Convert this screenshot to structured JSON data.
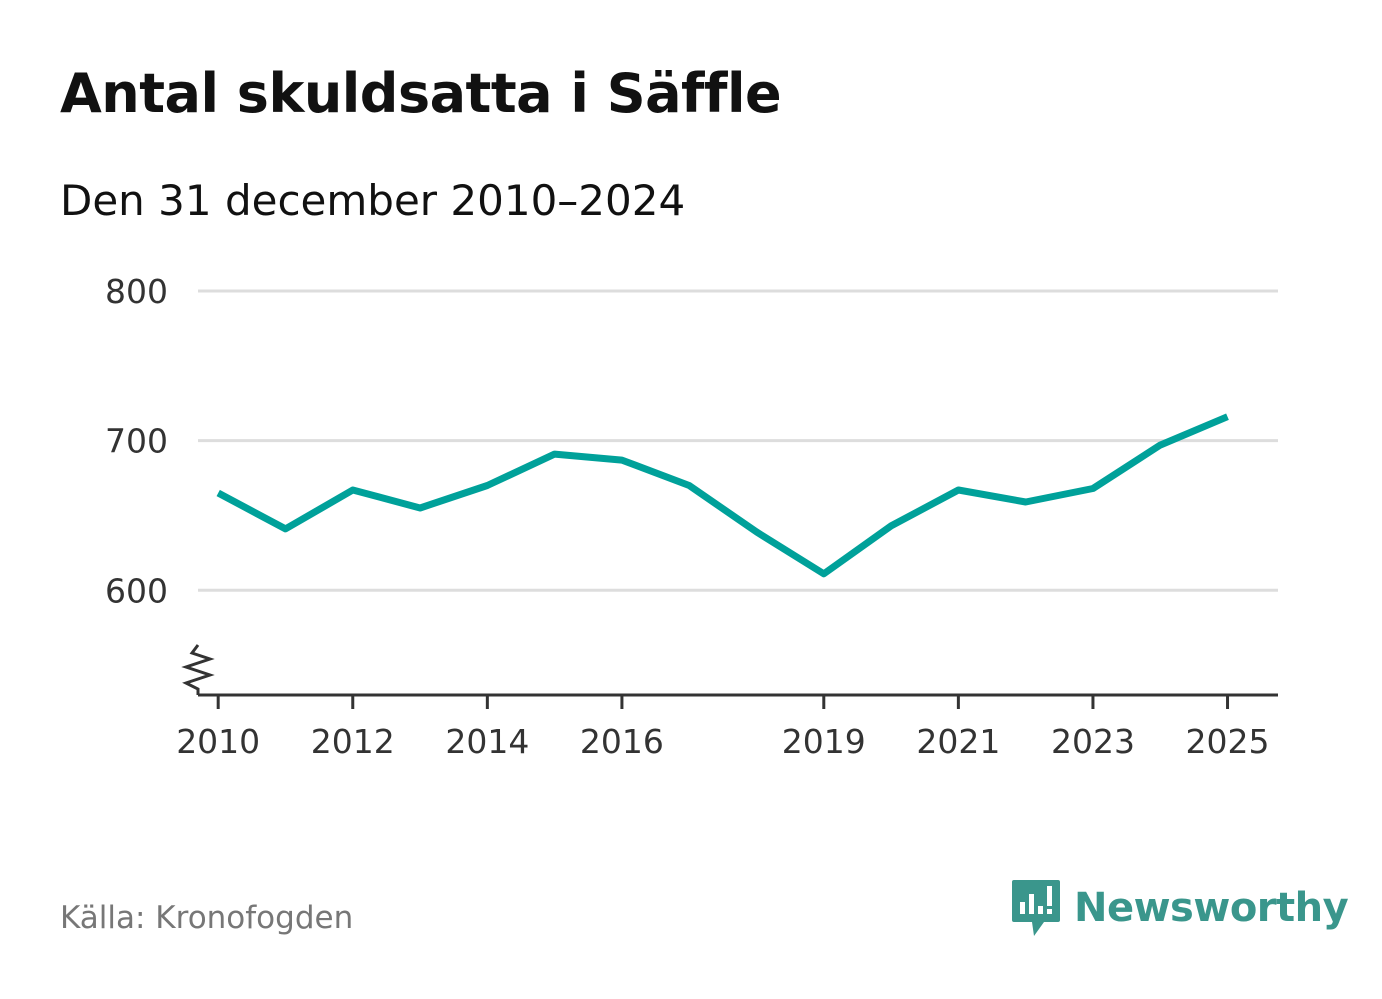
{
  "title": "Antal skuldsatta i Säffle",
  "subtitle": "Den 31 december 2010–2024",
  "source": "Källa: Kronofogden",
  "brand": {
    "name": "Newsworthy",
    "color": "#3a968c"
  },
  "chart_data": {
    "type": "line",
    "title": "Antal skuldsatta i Säffle",
    "xlabel": "",
    "ylabel": "",
    "x_ticks": [
      "2010",
      "2012",
      "2014",
      "2016",
      "2019",
      "2021",
      "2023",
      "2025"
    ],
    "y_ticks": [
      "600",
      "700",
      "800"
    ],
    "ylim": [
      530,
      800
    ],
    "xlim": [
      2009.7,
      2025.75
    ],
    "grid": true,
    "axis_break": true,
    "series": [
      {
        "name": "Antal skuldsatta",
        "color": "#00a19a",
        "x": [
          2010,
          2011,
          2012,
          2013,
          2014,
          2015,
          2016,
          2017,
          2018,
          2019,
          2020,
          2021,
          2022,
          2023,
          2024,
          2025
        ],
        "values": [
          665,
          641,
          667,
          655,
          670,
          691,
          687,
          670,
          639,
          611,
          643,
          667,
          659,
          668,
          697,
          716
        ]
      }
    ]
  }
}
